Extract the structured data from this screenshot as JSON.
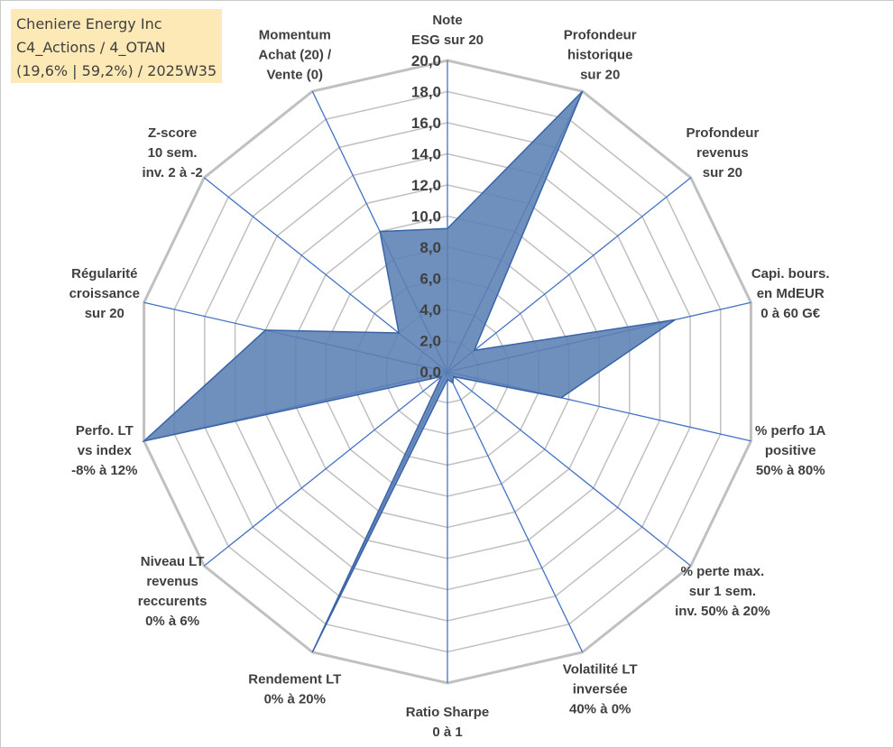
{
  "info_box": {
    "line1": "Cheniere Energy Inc",
    "line2": "C4_Actions / 4_OTAN",
    "line3": "(19,6% | 59,2%) / 2025W35"
  },
  "colors": {
    "grid": "#c0c0c0",
    "spoke": "#4472c4",
    "fill": "#5b80b4",
    "outline": "#3a64a8",
    "text": "#404040",
    "info_bg": "#fde9b5"
  },
  "chart_data": {
    "type": "radar",
    "title": "",
    "rmin": 0,
    "rmax": 20,
    "ticks": [
      "0,0",
      "2,0",
      "4,0",
      "6,0",
      "8,0",
      "10,0",
      "12,0",
      "14,0",
      "16,0",
      "18,0",
      "20,0"
    ],
    "grid": true,
    "axes": [
      {
        "label": [
          "Note",
          "ESG sur 20"
        ],
        "value": 9.2
      },
      {
        "label": [
          "Profondeur",
          "historique",
          "sur 20"
        ],
        "value": 20.0
      },
      {
        "label": [
          "Profondeur",
          "revenus",
          "sur 20"
        ],
        "value": 2.2
      },
      {
        "label": [
          "Capi. bours.",
          "en MdEUR",
          "0 à 60 G€"
        ],
        "value": 15.0
      },
      {
        "label": [
          "% perfo 1A",
          "positive",
          "50% à 80%"
        ],
        "value": 7.5
      },
      {
        "label": [
          "% perte max.",
          "sur 1 sem.",
          "inv. 50% à 20%"
        ],
        "value": 0.5
      },
      {
        "label": [
          "Volatilité LT",
          "inversée",
          "40% à 0%"
        ],
        "value": 0.8
      },
      {
        "label": [
          "Ratio Sharpe",
          "0 à 1"
        ],
        "value": 0.5
      },
      {
        "label": [
          "Rendement LT",
          "0% à 20%"
        ],
        "value": 20.0
      },
      {
        "label": [
          "Niveau LT",
          "revenus",
          "reccurents",
          "0% à 6%"
        ],
        "value": 0.5
      },
      {
        "label": [
          "Perfo. LT",
          "vs index",
          "-8% à 12%"
        ],
        "value": 20.0
      },
      {
        "label": [
          "Régularité",
          "croissance",
          "sur 20"
        ],
        "value": 12.0
      },
      {
        "label": [
          "Z-score",
          "10 sem.",
          "inv. 2 à -2"
        ],
        "value": 4.0
      },
      {
        "label": [
          "Momentum",
          "Achat (20) /",
          "Vente (0)"
        ],
        "value": 10.0
      }
    ]
  }
}
